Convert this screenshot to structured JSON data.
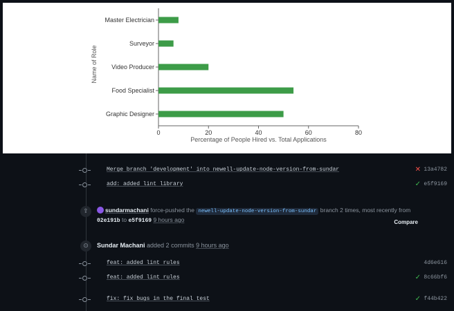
{
  "chart_data": {
    "type": "bar",
    "orientation": "horizontal",
    "categories": [
      "Master Electrician",
      "Surveyor",
      "Video Producer",
      "Food Specialist",
      "Graphic Designer"
    ],
    "values": [
      8,
      6,
      20,
      54,
      50
    ],
    "xlabel": "Percentage of People Hired vs. Total Applications",
    "ylabel": "Name of Role",
    "xlim": [
      0,
      80
    ],
    "xticks": [
      0,
      20,
      40,
      60,
      80
    ],
    "bar_color": "#3d9c48",
    "grid": false
  },
  "timeline": {
    "commits_top": [
      {
        "message": "Merge branch 'development' into newell-update-node-version-from-sundar",
        "status": "fail",
        "sha": "13a4782"
      },
      {
        "message": "add: added lint library",
        "status": "ok",
        "sha": "e5f9169"
      }
    ],
    "force_push": {
      "user": "sundarmachani",
      "action": "force-pushed the",
      "branch": "newell-update-node-version-from-sundar",
      "suffix": "branch 2 times, most recently from",
      "from_sha": "02e191b",
      "to_word": "to",
      "to_sha": "e5f9169",
      "time": "9 hours ago",
      "compare_label": "Compare"
    },
    "added_commits": {
      "user": "Sundar Machani",
      "action": "added 2 commits",
      "time": "9 hours ago"
    },
    "commits_bottom": [
      {
        "message": "feat: added lint rules",
        "status": "none",
        "sha": "4d6e616"
      },
      {
        "message": "feat: added lint rules",
        "status": "ok",
        "sha": "8c66bf6"
      },
      {
        "message": "fix: fix bugs in the final test",
        "status": "ok",
        "sha": "f44b422"
      }
    ],
    "icons": {
      "ok": "check-icon",
      "fail": "x-icon",
      "commit": "git-commit-icon",
      "push": "repo-push-icon"
    }
  }
}
